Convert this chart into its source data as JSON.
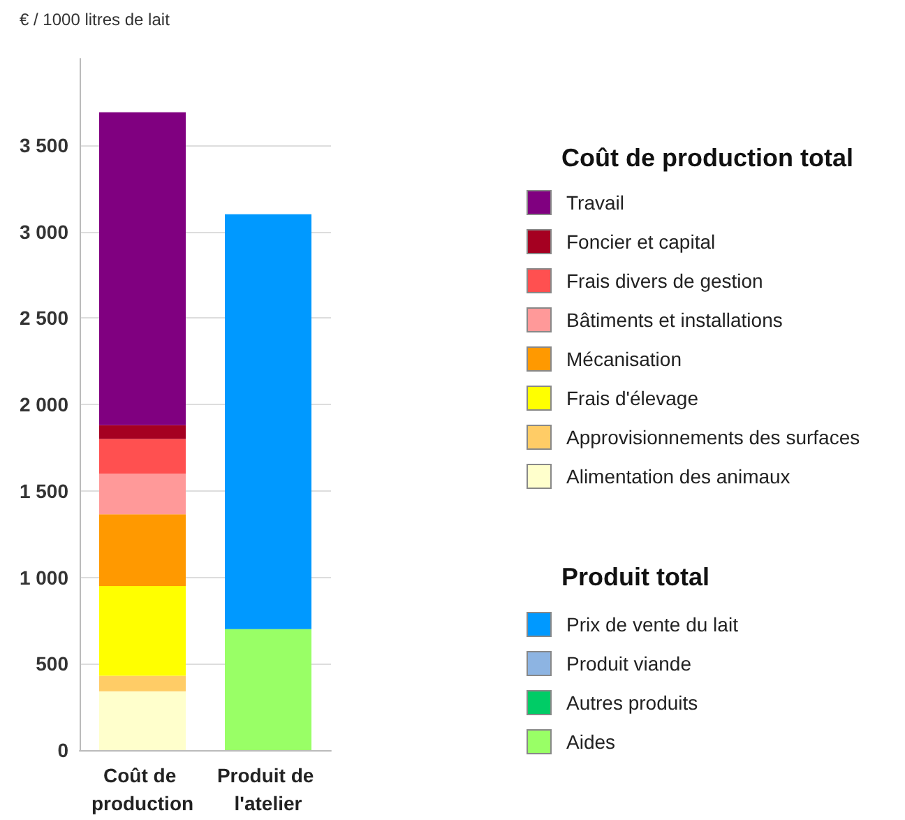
{
  "chart_data": {
    "type": "bar",
    "stacked": true,
    "ylabel": "€ / 1000 litres de lait",
    "legend_title": "Coût de production total",
    "annotations": [
      "Produit total"
    ],
    "categories": [
      "Coût de production",
      "Produit de l'atelier"
    ],
    "series": [
      {
        "name": "Alimentation des animaux",
        "color": "#ffffcc",
        "values": [
          340,
          null
        ]
      },
      {
        "name": "Approvisionnements des surfaces",
        "color": "#ffcc66",
        "values": [
          90,
          null
        ]
      },
      {
        "name": "Frais d'élevage",
        "color": "#ffff00",
        "values": [
          520,
          null
        ]
      },
      {
        "name": "Mécanisation",
        "color": "#ff9900",
        "values": [
          415,
          null
        ]
      },
      {
        "name": "Bâtiments et installations",
        "color": "#ff9999",
        "values": [
          235,
          null
        ]
      },
      {
        "name": "Frais divers de gestion",
        "color": "#ff5050",
        "values": [
          200,
          null
        ]
      },
      {
        "name": "Foncier et capital",
        "color": "#a50021",
        "values": [
          80,
          null
        ]
      },
      {
        "name": "Travail",
        "color": "#800080",
        "values": [
          1810,
          null
        ]
      },
      {
        "name": "Aides",
        "color": "#99ff66",
        "values": [
          null,
          700
        ]
      },
      {
        "name": "Autres produits",
        "color": "#00cc66",
        "values": [
          null,
          0
        ]
      },
      {
        "name": "Produit viande",
        "color": "#8db4e2",
        "values": [
          null,
          0
        ]
      },
      {
        "name": "Prix de vente du lait",
        "color": "#0099ff",
        "values": [
          null,
          2400
        ]
      }
    ],
    "ylim": [
      0,
      4000
    ],
    "yticks": [
      {
        "value": 0,
        "label": "0"
      },
      {
        "value": 500,
        "label": "500"
      },
      {
        "value": 1000,
        "label": "1 000"
      },
      {
        "value": 1500,
        "label": "1 500"
      },
      {
        "value": 2000,
        "label": "2 000"
      },
      {
        "value": 2500,
        "label": "2 500"
      },
      {
        "value": 3000,
        "label": "3 000"
      },
      {
        "value": 3500,
        "label": "3 500"
      }
    ],
    "grid": "y",
    "legend": "right"
  }
}
